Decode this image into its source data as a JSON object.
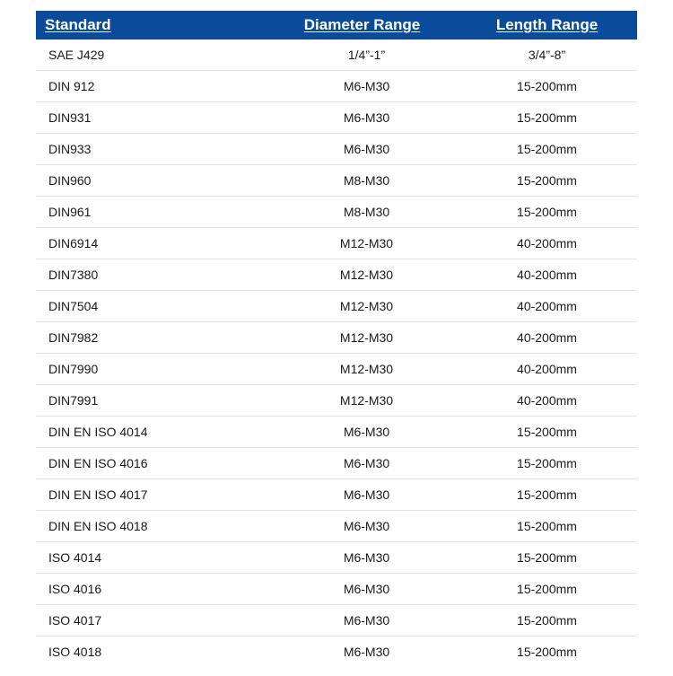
{
  "table": {
    "columns": [
      "Standard",
      "Diameter Range",
      "Length Range"
    ],
    "rows": [
      [
        "SAE J429",
        "1/4”-1”",
        "3/4”-8”"
      ],
      [
        "DIN 912",
        "M6-M30",
        "15-200mm"
      ],
      [
        "DIN931",
        "M6-M30",
        "15-200mm"
      ],
      [
        "DIN933",
        "M6-M30",
        "15-200mm"
      ],
      [
        "DIN960",
        "M8-M30",
        "15-200mm"
      ],
      [
        "DIN961",
        "M8-M30",
        "15-200mm"
      ],
      [
        "DIN6914",
        "M12-M30",
        "40-200mm"
      ],
      [
        "DIN7380",
        "M12-M30",
        "40-200mm"
      ],
      [
        "DIN7504",
        "M12-M30",
        "40-200mm"
      ],
      [
        "DIN7982",
        "M12-M30",
        "40-200mm"
      ],
      [
        "DIN7990",
        "M12-M30",
        "40-200mm"
      ],
      [
        "DIN7991",
        "M12-M30",
        "40-200mm"
      ],
      [
        "DIN EN ISO 4014",
        "M6-M30",
        "15-200mm"
      ],
      [
        "DIN EN ISO 4016",
        "M6-M30",
        "15-200mm"
      ],
      [
        "DIN EN ISO 4017",
        "M6-M30",
        "15-200mm"
      ],
      [
        "DIN EN ISO 4018",
        "M6-M30",
        "15-200mm"
      ],
      [
        "ISO 4014",
        "M6-M30",
        "15-200mm"
      ],
      [
        "ISO 4016",
        "M6-M30",
        "15-200mm"
      ],
      [
        "ISO 4017",
        "M6-M30",
        "15-200mm"
      ],
      [
        "ISO 4018",
        "M6-M30",
        "15-200mm"
      ]
    ],
    "header_bg": "#0a4c9a",
    "header_color": "#ffffff",
    "row_border_color": "#e5e5e5",
    "text_color": "#1a1a1a",
    "header_fontsize": 17,
    "cell_fontsize": 14
  }
}
